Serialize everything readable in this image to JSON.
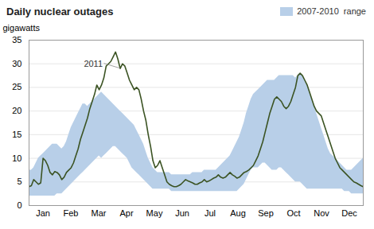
{
  "chart_data": {
    "type": "line",
    "title": "Daily nuclear outages",
    "ylabel": "gigawatts",
    "x": [
      0,
      0.0839,
      0.1678,
      0.2517,
      0.3357,
      0.4196,
      0.5035,
      0.5874,
      0.6713,
      0.7552,
      0.8392,
      0.9231,
      1.007,
      1.0909,
      1.1748,
      1.2587,
      1.3427,
      1.4266,
      1.5105,
      1.5944,
      1.6783,
      1.7622,
      1.8462,
      1.9301,
      2.014,
      2.0979,
      2.1818,
      2.2657,
      2.3497,
      2.4336,
      2.5175,
      2.6014,
      2.6853,
      2.7692,
      2.8531,
      2.9371,
      3.021,
      3.1049,
      3.1888,
      3.2727,
      3.3566,
      3.4406,
      3.5245,
      3.6084,
      3.6923,
      3.7762,
      3.8601,
      3.9441,
      4.028,
      4.1119,
      4.1958,
      4.2797,
      4.3636,
      4.4476,
      4.5315,
      4.6154,
      4.6993,
      4.7832,
      4.8671,
      4.951,
      5.035,
      5.1189,
      5.2028,
      5.2867,
      5.3706,
      5.4545,
      5.5385,
      5.6224,
      5.7063,
      5.7902,
      5.8741,
      5.958,
      6.042,
      6.1259,
      6.2098,
      6.2937,
      6.3776,
      6.4615,
      6.5455,
      6.6294,
      6.7133,
      6.7972,
      6.8811,
      6.965,
      7.049,
      7.1329,
      7.2168,
      7.3007,
      7.3846,
      7.4685,
      7.5524,
      7.6364,
      7.7203,
      7.8042,
      7.8881,
      7.972,
      8.0559,
      8.1399,
      8.2238,
      8.3077,
      8.3916,
      8.4755,
      8.5594,
      8.6434,
      8.7273,
      8.8112,
      8.8951,
      8.979,
      9.0629,
      9.1469,
      9.2308,
      9.3147,
      9.3986,
      9.4825,
      9.5664,
      9.6503,
      9.7343,
      9.8182,
      9.9021,
      9.986,
      10.0699,
      10.1538,
      10.2378,
      10.3217,
      10.4056,
      10.4895,
      10.5734,
      10.6573,
      10.7413,
      10.8252,
      10.9091,
      10.993,
      11.0769,
      11.1608,
      11.2448,
      11.3287,
      11.4126,
      11.4965,
      11.5804,
      11.6643,
      11.7483,
      11.8322,
      11.9161,
      12
    ],
    "series": [
      {
        "name": "2007-2010  range",
        "type": "area",
        "color": "#b8cfe8",
        "upper": [
          7.5,
          7.5,
          8.0,
          9.0,
          10.0,
          10.5,
          11.0,
          11.5,
          12.0,
          12.5,
          13.0,
          13.0,
          13.0,
          12.5,
          12.0,
          12.5,
          13.5,
          15.0,
          16.5,
          17.5,
          18.5,
          19.5,
          20.5,
          21.5,
          21.5,
          21.0,
          21.5,
          22.0,
          22.5,
          23.0,
          23.5,
          24.0,
          23.5,
          23.0,
          22.5,
          22.0,
          21.5,
          21.0,
          20.5,
          20.0,
          19.5,
          19.0,
          18.5,
          18.0,
          17.5,
          17.0,
          16.0,
          15.0,
          14.0,
          13.0,
          11.5,
          10.0,
          9.0,
          8.0,
          7.5,
          7.0,
          7.0,
          7.0,
          7.0,
          7.0,
          7.0,
          6.5,
          6.5,
          6.5,
          6.5,
          6.5,
          6.5,
          6.5,
          6.5,
          6.5,
          7.0,
          7.0,
          7.0,
          7.0,
          7.0,
          7.5,
          7.5,
          7.5,
          7.5,
          7.5,
          7.5,
          8.0,
          8.5,
          9.0,
          9.5,
          10.0,
          10.5,
          11.5,
          12.5,
          13.5,
          14.5,
          16.0,
          17.5,
          19.5,
          21.0,
          22.5,
          23.5,
          24.0,
          24.5,
          25.0,
          25.5,
          26.0,
          26.5,
          26.5,
          26.5,
          26.5,
          27.0,
          27.5,
          27.5,
          27.5,
          27.5,
          27.5,
          27.5,
          27.5,
          27.0,
          27.5,
          28.0,
          27.5,
          26.5,
          25.5,
          24.0,
          22.5,
          21.0,
          19.5,
          18.0,
          16.5,
          15.0,
          13.5,
          12.0,
          11.0,
          10.5,
          10.0,
          9.5,
          9.0,
          8.5,
          8.0,
          7.5,
          7.5,
          7.5,
          8.0,
          8.5,
          9.0,
          9.5,
          10.0
        ],
        "lower": [
          2.0,
          2.0,
          2.0,
          2.0,
          2.0,
          2.0,
          2.0,
          2.0,
          2.0,
          2.0,
          2.0,
          2.0,
          2.5,
          2.5,
          2.5,
          3.0,
          3.5,
          4.0,
          4.5,
          5.0,
          5.5,
          6.0,
          6.5,
          7.0,
          7.5,
          8.0,
          8.5,
          9.0,
          9.5,
          10.0,
          10.5,
          10.0,
          10.5,
          11.0,
          11.5,
          12.0,
          12.5,
          12.5,
          12.0,
          11.5,
          11.0,
          10.5,
          10.0,
          9.0,
          8.0,
          7.5,
          7.0,
          6.5,
          6.0,
          5.5,
          5.0,
          4.5,
          4.0,
          3.5,
          3.5,
          3.5,
          3.5,
          3.5,
          3.5,
          3.5,
          3.5,
          3.0,
          3.0,
          3.0,
          3.0,
          3.0,
          3.0,
          3.0,
          3.0,
          3.0,
          3.0,
          3.0,
          3.0,
          3.0,
          3.0,
          3.0,
          3.0,
          3.0,
          3.0,
          3.0,
          3.0,
          3.0,
          3.0,
          3.0,
          3.0,
          3.0,
          3.0,
          3.0,
          3.0,
          3.0,
          3.5,
          4.0,
          4.5,
          5.5,
          6.5,
          7.5,
          8.0,
          8.0,
          8.0,
          8.5,
          9.0,
          9.0,
          8.5,
          8.0,
          7.5,
          7.5,
          7.5,
          8.0,
          8.0,
          7.5,
          7.0,
          6.5,
          6.0,
          5.5,
          5.0,
          5.0,
          5.0,
          4.5,
          4.0,
          3.5,
          3.5,
          3.5,
          3.5,
          3.5,
          3.5,
          3.5,
          3.5,
          3.5,
          3.5,
          3.5,
          3.5,
          3.5,
          3.5,
          3.5,
          3.5,
          3.0,
          3.0,
          3.0,
          2.5,
          2.5,
          2.5,
          2.5,
          2.5,
          2.5
        ]
      },
      {
        "type": "line",
        "color": "#3b5323",
        "values": [
          4.0,
          4.2,
          5.5,
          5.0,
          4.5,
          4.8,
          10.0,
          9.5,
          8.5,
          7.0,
          6.5,
          7.2,
          7.0,
          6.5,
          5.5,
          6.0,
          7.0,
          7.5,
          8.0,
          9.0,
          10.5,
          12.0,
          14.0,
          15.5,
          17.0,
          18.5,
          20.5,
          22.0,
          23.5,
          25.5,
          24.5,
          25.5,
          27.0,
          29.5,
          30.0,
          30.5,
          31.5,
          32.5,
          31.0,
          29.0,
          30.0,
          29.5,
          28.0,
          26.5,
          25.5,
          24.5,
          25.0,
          24.5,
          22.5,
          20.0,
          18.0,
          15.0,
          12.5,
          9.5,
          8.0,
          8.5,
          9.5,
          8.0,
          6.5,
          5.0,
          4.5,
          4.2,
          4.0,
          4.0,
          4.2,
          4.5,
          5.0,
          5.5,
          5.2,
          5.0,
          4.8,
          4.5,
          4.5,
          4.8,
          5.0,
          5.5,
          5.0,
          5.2,
          5.5,
          5.8,
          6.0,
          6.5,
          6.0,
          5.8,
          6.0,
          6.5,
          7.0,
          6.5,
          6.2,
          5.8,
          6.0,
          6.5,
          7.0,
          7.2,
          7.5,
          8.0,
          8.5,
          9.5,
          10.5,
          12.0,
          13.5,
          15.5,
          17.5,
          19.5,
          21.0,
          22.5,
          23.0,
          22.5,
          22.0,
          21.0,
          20.5,
          21.0,
          22.0,
          23.5,
          25.0,
          27.5,
          28.0,
          27.5,
          26.5,
          25.5,
          24.0,
          22.5,
          21.0,
          20.0,
          19.5,
          19.0,
          17.5,
          16.0,
          14.5,
          13.0,
          11.5,
          10.0,
          9.0,
          8.0,
          7.5,
          7.0,
          6.5,
          6.0,
          5.5,
          5.0,
          4.8,
          4.5,
          4.2,
          4.0
        ]
      }
    ],
    "xlim": [
      0,
      12
    ],
    "xticks": [
      {
        "value": 0.5,
        "label": "Jan"
      },
      {
        "value": 1.5,
        "label": "Feb"
      },
      {
        "value": 2.5,
        "label": "Mar"
      },
      {
        "value": 3.5,
        "label": "Apr"
      },
      {
        "value": 4.5,
        "label": "May"
      },
      {
        "value": 5.5,
        "label": "Jun"
      },
      {
        "value": 6.5,
        "label": "Jul"
      },
      {
        "value": 7.5,
        "label": "Aug"
      },
      {
        "value": 8.5,
        "label": "Sep"
      },
      {
        "value": 9.5,
        "label": "Oct"
      },
      {
        "value": 10.5,
        "label": "Nov"
      },
      {
        "value": 11.5,
        "label": "Dec"
      }
    ],
    "ylim": [
      0,
      35
    ],
    "yticks": [
      0,
      5,
      10,
      15,
      20,
      25,
      30,
      35
    ],
    "grid": "y",
    "legend": "upper right",
    "annotations": [
      {
        "text": "2011",
        "x": 3.2727,
        "y": 29.0
      }
    ]
  }
}
